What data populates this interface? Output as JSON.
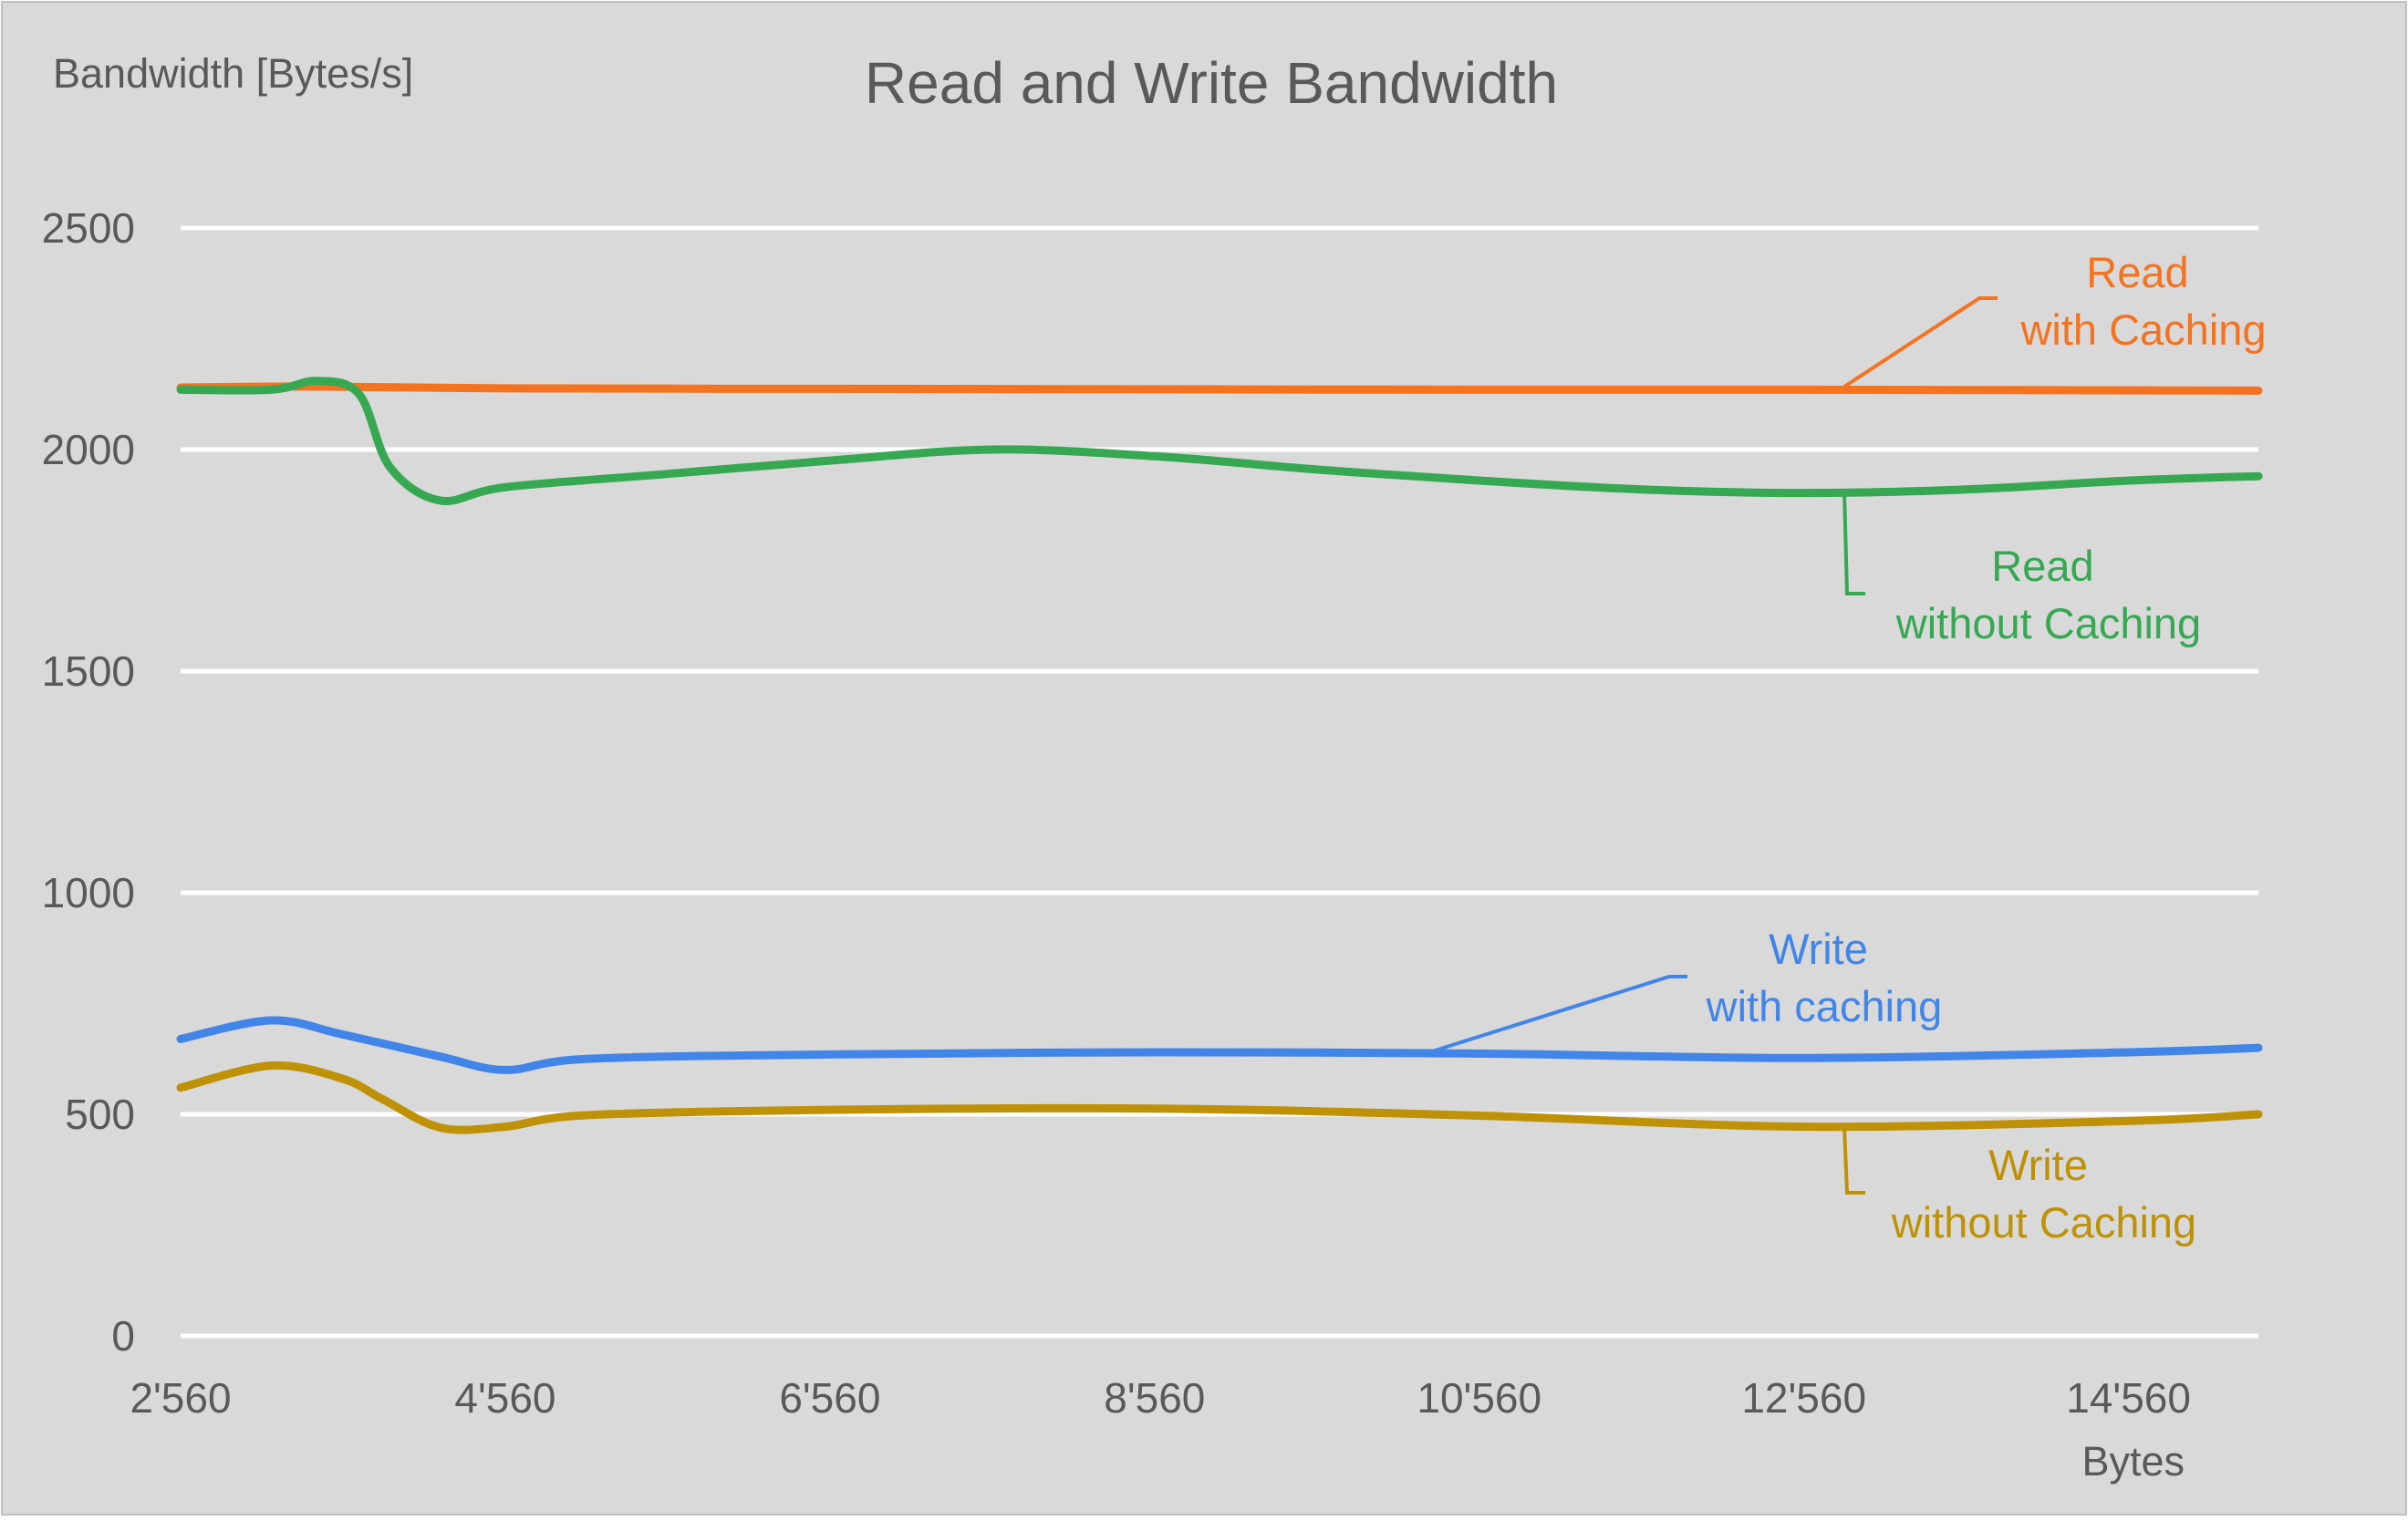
{
  "chart_data": {
    "type": "line",
    "title": "Read and Write Bandwidth",
    "ylabel": "Bandwidth [Bytes/s]",
    "xlabel": "Bytes",
    "ylim": [
      0,
      2500
    ],
    "xlim": [
      2560,
      15360
    ],
    "yticks": [
      0,
      500,
      1000,
      1500,
      2000,
      2500
    ],
    "yticklabels": [
      "0",
      "500",
      "1000",
      "1500",
      "2000",
      "2500"
    ],
    "xticks": [
      2560,
      4560,
      6560,
      8560,
      10560,
      12560,
      14560
    ],
    "xticklabels": [
      "2'560",
      "4'560",
      "6'560",
      "8'560",
      "10'560",
      "12'560",
      "14'560"
    ],
    "grid": true,
    "legend": "inline labels",
    "series": [
      {
        "name": "Read\nwith Caching",
        "color": "#F47320",
        "x": [
          2560,
          3120,
          3480,
          4560,
          6560,
          8560,
          10560,
          12560,
          15360
        ],
        "y": [
          2140,
          2142,
          2142,
          2138,
          2137,
          2136,
          2135,
          2135,
          2133
        ]
      },
      {
        "name": "Read\nwithout Caching",
        "color": "#36A852",
        "x": [
          2560,
          3120,
          3400,
          3660,
          3850,
          4160,
          4560,
          5560,
          6560,
          7560,
          8560,
          9560,
          10560,
          11560,
          12560,
          13560,
          14560,
          15360
        ],
        "y": [
          2135,
          2135,
          2155,
          2125,
          1960,
          1885,
          1915,
          1945,
          1975,
          2000,
          1985,
          1955,
          1930,
          1910,
          1902,
          1910,
          1930,
          1940
        ]
      },
      {
        "name": "Write\nwith caching",
        "color": "#4285E8",
        "x": [
          2560,
          3120,
          3560,
          4160,
          4560,
          5060,
          6560,
          8560,
          10560,
          12560,
          14560,
          15360
        ],
        "y": [
          670,
          712,
          680,
          630,
          600,
          625,
          635,
          640,
          637,
          627,
          640,
          650
        ]
      },
      {
        "name": "Write\nwithout Caching",
        "color": "#BE9106",
        "x": [
          2560,
          3120,
          3560,
          3800,
          4160,
          4560,
          5060,
          6560,
          8560,
          10560,
          12560,
          14560,
          15360
        ],
        "y": [
          560,
          610,
          580,
          535,
          470,
          472,
          498,
          510,
          513,
          497,
          472,
          485,
          500
        ]
      }
    ]
  }
}
